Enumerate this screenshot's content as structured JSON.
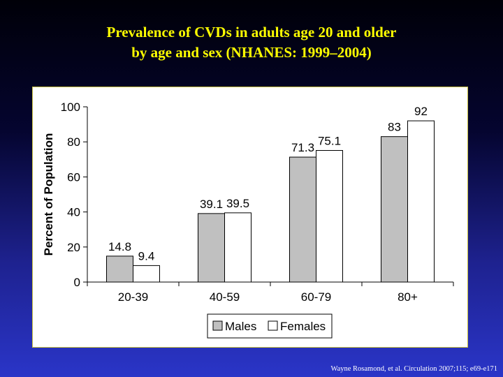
{
  "title": {
    "line1": "Prevalence of CVDs in adults age 20 and older",
    "line2": "by age and sex (NHANES: 1999–2004)"
  },
  "citation": "Wayne Rosamond, et al. Circulation 2007;115; e69-e171",
  "chart_data": {
    "type": "bar",
    "title": "Prevalence of CVDs in adults age 20 and older by age and sex (NHANES: 1999–2004)",
    "xlabel": "",
    "ylabel": "Percent of Population",
    "ylim": [
      0,
      100
    ],
    "yticks": [
      0,
      20,
      40,
      60,
      80,
      100
    ],
    "categories": [
      "20-39",
      "40-59",
      "60-79",
      "80+"
    ],
    "series": [
      {
        "name": "Males",
        "values": [
          14.8,
          39.1,
          71.3,
          83
        ],
        "labels": [
          "14.8",
          "39.1",
          "71.3",
          "83"
        ],
        "color": "#c0c0c0"
      },
      {
        "name": "Females",
        "values": [
          9.4,
          39.5,
          75.1,
          92
        ],
        "labels": [
          "9.4",
          "39.5",
          "75.1",
          "92"
        ],
        "color": "#ffffff"
      }
    ],
    "grid": false,
    "legend_position": "bottom-center",
    "colors": {
      "panel": "#ffffff",
      "axis": "#000000",
      "bar_outline": "#000000"
    }
  }
}
